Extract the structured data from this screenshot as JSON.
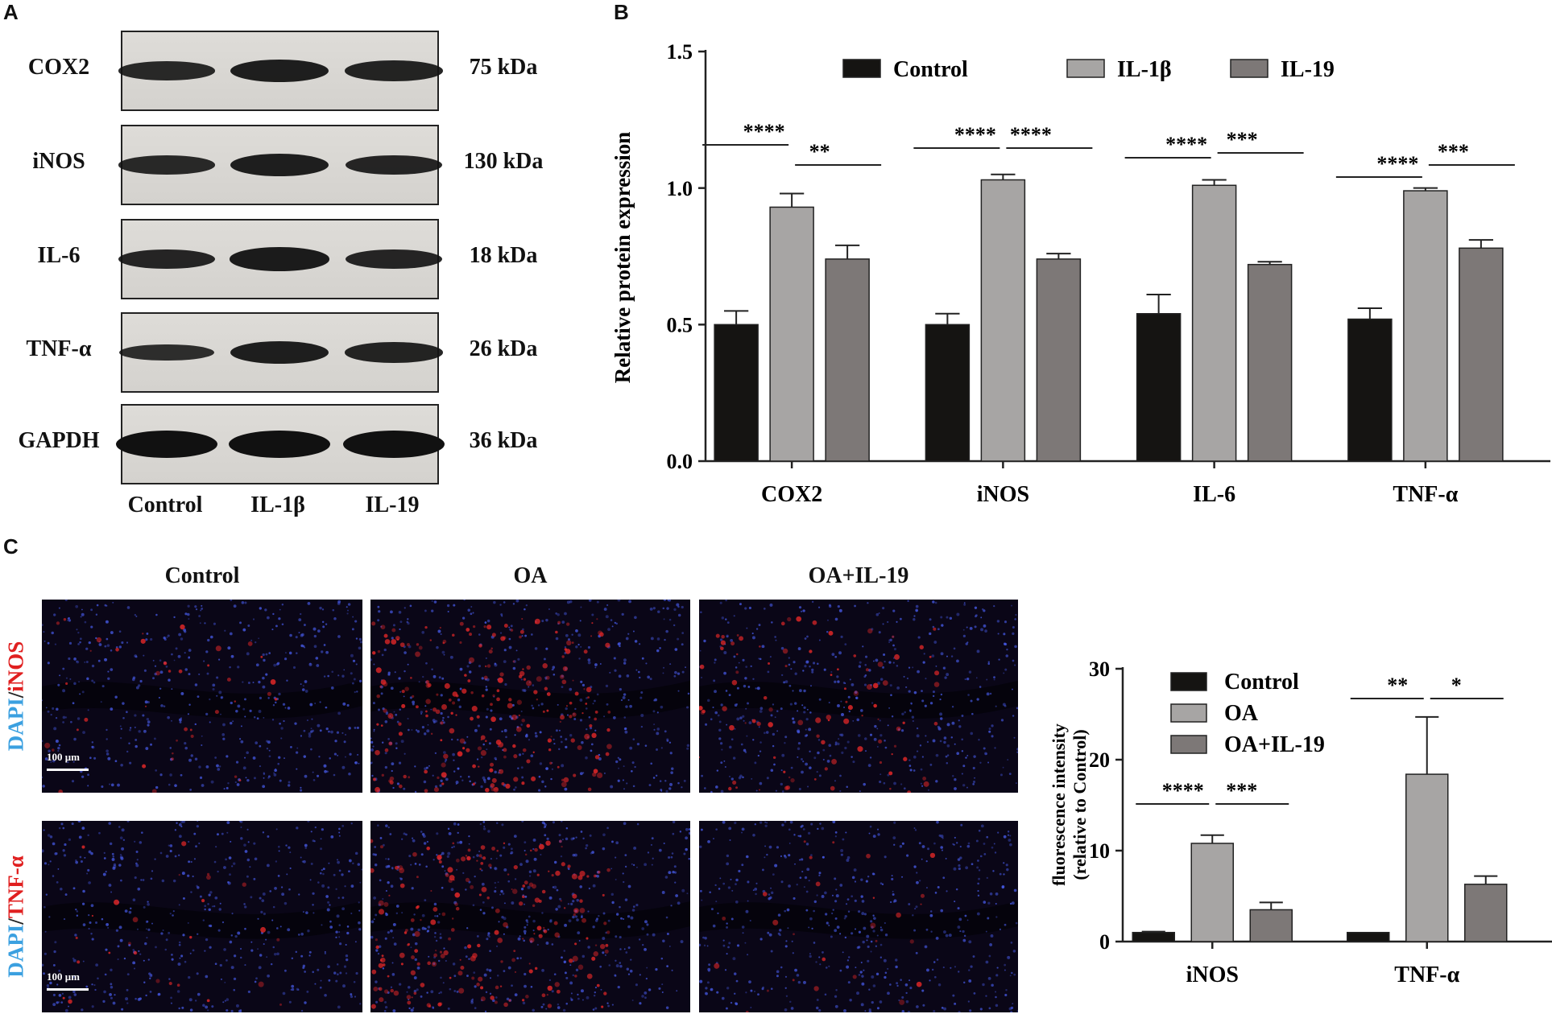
{
  "panelA": {
    "letter": "A",
    "rows": [
      {
        "protein": "COX2",
        "kda": "75 kDa",
        "intensity": [
          0.55,
          0.75,
          0.65
        ]
      },
      {
        "protein": "iNOS",
        "kda": "130 kDa",
        "intensity": [
          0.55,
          0.75,
          0.6
        ]
      },
      {
        "protein": "IL-6",
        "kda": "18 kDa",
        "intensity": [
          0.6,
          0.8,
          0.6
        ]
      },
      {
        "protein": "TNF-α",
        "kda": "26 kDa",
        "intensity": [
          0.45,
          0.75,
          0.65
        ]
      },
      {
        "protein": "GAPDH",
        "kda": "36 kDa",
        "intensity": [
          1,
          1,
          1
        ]
      }
    ],
    "lanes": [
      "Control",
      "IL-1β",
      "IL-19"
    ]
  },
  "panelB": {
    "letter": "B"
  },
  "panelC": {
    "letter": "C",
    "columns": [
      "Control",
      "OA",
      "OA+IL-19"
    ],
    "row_labels": [
      {
        "dapi": "DAPI",
        "sep": "/",
        "marker": "iNOS"
      },
      {
        "dapi": "DAPI",
        "sep": "/",
        "marker": "TNF-α"
      }
    ],
    "scale_bar": "100 μm",
    "red_signal": [
      [
        0.15,
        0.9,
        0.35
      ],
      [
        0.1,
        0.8,
        0.1
      ]
    ]
  },
  "colors": {
    "control": "#151412",
    "treat1": "#a7a5a4",
    "treat2": "#7d7877",
    "dapi": "#3ba0e0",
    "marker": "#e02020"
  },
  "chart_data": [
    {
      "type": "bar",
      "categories": [
        "COX2",
        "iNOS",
        "IL-6",
        "TNF-α"
      ],
      "series": [
        {
          "name": "Control",
          "values": [
            0.5,
            0.5,
            0.54,
            0.52
          ],
          "errors": [
            0.05,
            0.04,
            0.07,
            0.04
          ]
        },
        {
          "name": "IL-1β",
          "values": [
            0.93,
            1.03,
            1.01,
            0.99
          ],
          "errors": [
            0.05,
            0.02,
            0.02,
            0.01
          ]
        },
        {
          "name": "IL-19",
          "values": [
            0.74,
            0.74,
            0.72,
            0.78
          ],
          "errors": [
            0.05,
            0.02,
            0.01,
            0.03
          ]
        }
      ],
      "ylabel": "Relative protein expression",
      "xlabel": "",
      "title": "",
      "ylim": [
        0,
        1.5
      ],
      "yticks": [
        "0.0",
        "0.5",
        "1.0",
        "1.5"
      ],
      "legend": "top",
      "significance": [
        {
          "category": 0,
          "left": "****",
          "right": "**"
        },
        {
          "category": 1,
          "left": "****",
          "right": "****"
        },
        {
          "category": 2,
          "left": "****",
          "right": "***"
        },
        {
          "category": 3,
          "left": "****",
          "right": "***"
        }
      ]
    },
    {
      "type": "bar",
      "categories": [
        "iNOS",
        "TNF-α"
      ],
      "series": [
        {
          "name": "Control",
          "values": [
            1.0,
            1.0
          ],
          "errors": [
            0.1,
            0
          ]
        },
        {
          "name": "OA",
          "values": [
            10.8,
            18.4
          ],
          "errors": [
            0.9,
            6.3
          ]
        },
        {
          "name": "OA+IL-19",
          "values": [
            3.5,
            6.3
          ],
          "errors": [
            0.8,
            0.9
          ]
        }
      ],
      "ylabel": "fluorescence intensity (relative to Control)",
      "ylabel_lines": [
        "fluorescence intensity",
        "(relative to Control)"
      ],
      "xlabel": "",
      "title": "",
      "ylim": [
        0,
        30
      ],
      "yticks": [
        "0",
        "10",
        "20",
        "30"
      ],
      "legend": "top-left",
      "significance": [
        {
          "category": 0,
          "left": "****",
          "right": "***"
        },
        {
          "category": 1,
          "left": "**",
          "right": "*"
        }
      ]
    }
  ]
}
